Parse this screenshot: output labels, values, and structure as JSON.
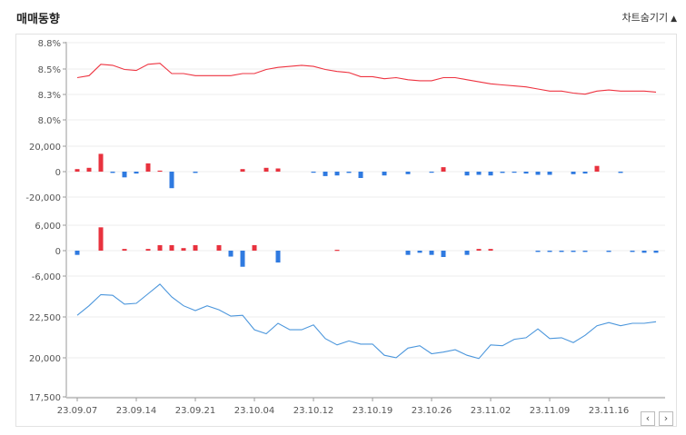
{
  "header": {
    "title": "매매동향",
    "hide_chart_label": "차트숨기기",
    "toggle_icon": "triangle-up-icon"
  },
  "colors": {
    "rate_line": "#ee3340",
    "buy_bar": "#e8323e",
    "sell_bar": "#2f7ae0",
    "price_line": "#4b96dc",
    "grid": "#eeeeee",
    "axis": "#999999"
  },
  "navigation": {
    "prev_label": "‹",
    "next_label": "›"
  },
  "chart_data": {
    "type": "line",
    "x_tick_labels": [
      "23.09.07",
      "23.09.14",
      "23.09.21",
      "23.10.04",
      "23.10.12",
      "23.10.19",
      "23.10.26",
      "23.11.02",
      "23.11.09",
      "23.11.16"
    ],
    "x_tick_positions": [
      0,
      5,
      10,
      15,
      20,
      25,
      30,
      35,
      40,
      45
    ],
    "panels": [
      {
        "id": "foreign_rate",
        "type": "line",
        "ylim": [
          8.0,
          8.8
        ],
        "yticks": [
          "8.8%",
          "8.5%",
          "8.3%",
          "8.0%"
        ],
        "ytick_values": [
          8.8,
          8.55,
          8.3,
          8.05
        ],
        "values": [
          8.46,
          8.48,
          8.59,
          8.58,
          8.54,
          8.53,
          8.59,
          8.6,
          8.5,
          8.5,
          8.48,
          8.48,
          8.48,
          8.48,
          8.5,
          8.5,
          8.54,
          8.56,
          8.57,
          8.58,
          8.57,
          8.54,
          8.52,
          8.51,
          8.47,
          8.47,
          8.45,
          8.46,
          8.44,
          8.43,
          8.43,
          8.46,
          8.46,
          8.44,
          8.42,
          8.4,
          8.39,
          8.38,
          8.37,
          8.35,
          8.33,
          8.33,
          8.31,
          8.3,
          8.33,
          8.34,
          8.33,
          8.33,
          8.33,
          8.32
        ]
      },
      {
        "id": "foreign_net",
        "type": "bar",
        "ylim": [
          -30000,
          30000
        ],
        "yticks": [
          "20,000",
          "0",
          "-20,000"
        ],
        "ytick_values": [
          20000,
          0,
          -20000
        ],
        "values": [
          2000,
          3000,
          14000,
          -1000,
          -4500,
          -1500,
          6500,
          800,
          -13000,
          0,
          -1000,
          0,
          0,
          0,
          2000,
          0,
          3000,
          2500,
          0,
          0,
          -500,
          -3500,
          -3000,
          -1000,
          -5000,
          0,
          -3000,
          0,
          -2000,
          0,
          -500,
          3500,
          0,
          -3000,
          -2500,
          -3000,
          -1000,
          -500,
          -1500,
          -2500,
          -2500,
          0,
          -2000,
          -1500,
          4500,
          0,
          -1000,
          0,
          0,
          0
        ]
      },
      {
        "id": "institution_net",
        "type": "bar",
        "ylim": [
          -9000,
          9000
        ],
        "yticks": [
          "6,000",
          "0",
          "-6,000"
        ],
        "ytick_values": [
          6000,
          0,
          -6000
        ],
        "values": [
          -1000,
          0,
          5500,
          0,
          400,
          0,
          400,
          1300,
          1300,
          600,
          1300,
          0,
          1300,
          -1400,
          -3800,
          1300,
          0,
          -2800,
          0,
          0,
          0,
          0,
          200,
          0,
          0,
          0,
          0,
          0,
          -1000,
          -500,
          -1000,
          -1500,
          0,
          -1000,
          400,
          400,
          0,
          0,
          0,
          -300,
          -300,
          -300,
          -300,
          -300,
          0,
          -300,
          0,
          -300,
          -500,
          -500
        ]
      },
      {
        "id": "price",
        "type": "line",
        "ylim": [
          17500,
          25000
        ],
        "yticks": [
          "22,500",
          "20,000",
          "17,500"
        ],
        "ytick_values": [
          22500,
          20000,
          17500
        ],
        "values": [
          22600,
          23200,
          23900,
          23850,
          23300,
          23350,
          23950,
          24550,
          23750,
          23200,
          22900,
          23200,
          22950,
          22550,
          22600,
          21700,
          21450,
          22100,
          21700,
          21700,
          22000,
          21150,
          20750,
          21000,
          20800,
          20800,
          20100,
          19950,
          20550,
          20700,
          20200,
          20300,
          20450,
          20100,
          19900,
          20750,
          20700,
          21100,
          21200,
          21750,
          21150,
          21200,
          20900,
          21350,
          21950,
          22150,
          21950,
          22100,
          22100,
          22200
        ]
      }
    ]
  }
}
